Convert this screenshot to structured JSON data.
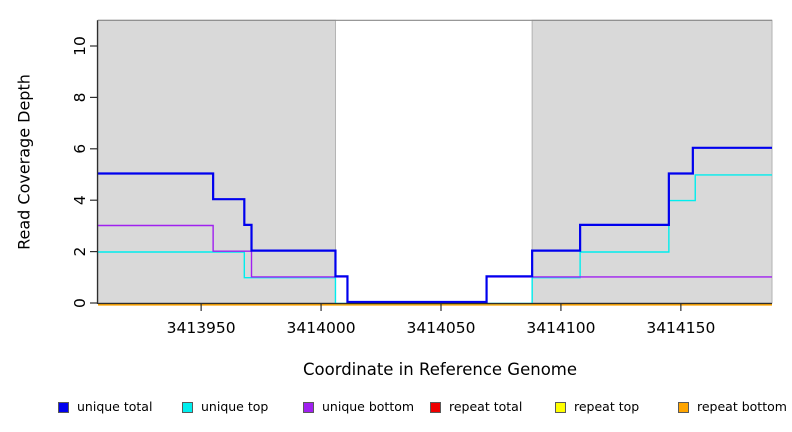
{
  "figure": {
    "xlabel": "Coordinate in Reference Genome",
    "ylabel": "Read Coverage Depth"
  },
  "chart_data": {
    "type": "line",
    "subtype": "step",
    "title": "",
    "xlabel": "Coordinate in Reference Genome",
    "ylabel": "Read Coverage Depth",
    "xlim": [
      3413907,
      3414188
    ],
    "ylim": [
      0,
      11
    ],
    "x_ticks": [
      3413950,
      3414000,
      3414050,
      3414100,
      3414150
    ],
    "y_ticks": [
      0,
      2,
      4,
      6,
      8,
      10
    ],
    "grid": false,
    "legend_position": "bottom",
    "shade_color": "#d9d9d9",
    "shade_border_color": "#b2b2b2",
    "top_border_color": "#8a8a8a",
    "axis_color": "#2e2e2e",
    "shaded_regions": [
      {
        "name": "masked-region-left",
        "x0": 3413907,
        "x1": 3414006
      },
      {
        "name": "masked-region-right",
        "x0": 3414088,
        "x1": 3414188
      }
    ],
    "series": [
      {
        "name": "unique total",
        "color": "#0000EE",
        "width": 2.2,
        "steps": [
          [
            3413907,
            5
          ],
          [
            3413955,
            4
          ],
          [
            3413968,
            3
          ],
          [
            3413971,
            2
          ],
          [
            3414006,
            1
          ],
          [
            3414011,
            0
          ],
          [
            3414069,
            1
          ],
          [
            3414088,
            2
          ],
          [
            3414108,
            3
          ],
          [
            3414145,
            5
          ],
          [
            3414155,
            6
          ]
        ]
      },
      {
        "name": "unique top",
        "color": "#00EEEE",
        "width": 1.4,
        "steps": [
          [
            3413907,
            2
          ],
          [
            3413968,
            1
          ],
          [
            3414006,
            0
          ],
          [
            3414088,
            1
          ],
          [
            3414108,
            2
          ],
          [
            3414145,
            4
          ],
          [
            3414156,
            5
          ]
        ]
      },
      {
        "name": "unique bottom",
        "color": "#A020F0",
        "width": 1.4,
        "steps": [
          [
            3413907,
            3
          ],
          [
            3413955,
            2
          ],
          [
            3413971,
            1
          ],
          [
            3414011,
            0
          ],
          [
            3414069,
            1
          ]
        ]
      },
      {
        "name": "repeat total",
        "color": "#EE0000",
        "width": 1.4,
        "steps": [
          [
            3413907,
            0
          ]
        ]
      },
      {
        "name": "repeat top",
        "color": "#FFFF00",
        "width": 1.4,
        "steps": [
          [
            3413907,
            0
          ]
        ]
      },
      {
        "name": "repeat bottom",
        "color": "#FFA500",
        "width": 2.0,
        "steps": [
          [
            3413907,
            0
          ]
        ]
      }
    ]
  }
}
